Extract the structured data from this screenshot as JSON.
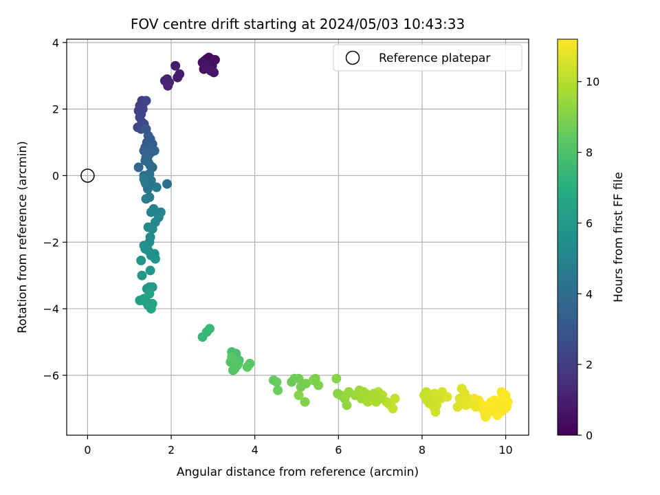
{
  "chart_data": {
    "type": "scatter",
    "title": "FOV centre drift starting at 2024/05/03 10:43:33",
    "xlabel": "Angular distance from reference (arcmin)",
    "ylabel": "Rotation from reference (arcmin)",
    "xlim": [
      -0.5,
      10.55
    ],
    "ylim": [
      -7.8,
      4.1
    ],
    "xticks": [
      0,
      2,
      4,
      6,
      8,
      10
    ],
    "yticks": [
      -6,
      -4,
      -2,
      0,
      2,
      4
    ],
    "grid": true,
    "legend": {
      "label": "Reference platepar",
      "placement": "top-right",
      "marker": "open-circle"
    },
    "reference_point": {
      "x": 0,
      "y": 0
    },
    "colorbar": {
      "label": "Hours from first FF file",
      "colormap": "viridis",
      "range": [
        0,
        11.2
      ],
      "ticks": [
        0,
        2,
        4,
        6,
        8,
        10
      ]
    },
    "series": [
      {
        "x": [
          2.8,
          2.85,
          2.9,
          2.95,
          3.0,
          2.78,
          3.05,
          2.98,
          2.88,
          2.75,
          2.82,
          2.95,
          3.02,
          1.9,
          1.95,
          1.85,
          1.92,
          2.1,
          2.2,
          2.15,
          1.3,
          1.25,
          1.35,
          1.22,
          1.28,
          1.32,
          1.4,
          1.25,
          1.3,
          1.2,
          1.35,
          1.28,
          1.4,
          1.45,
          1.5,
          1.42,
          1.38,
          1.55,
          1.48,
          1.52,
          1.45,
          1.35,
          1.4,
          1.6,
          1.45,
          1.38,
          1.5,
          1.42,
          1.55,
          1.22,
          1.35,
          1.42,
          1.48,
          1.4,
          1.45,
          1.52,
          1.38,
          1.44,
          1.65,
          1.35,
          1.48,
          1.9,
          1.4,
          1.58,
          1.75,
          1.52,
          1.62,
          1.7,
          1.45,
          1.5,
          1.55,
          1.48,
          1.42,
          1.38,
          1.6,
          1.52,
          1.35,
          1.45,
          1.62,
          1.28,
          1.5,
          1.3,
          1.48,
          1.42,
          1.55,
          1.35,
          1.25,
          1.4,
          1.52,
          1.45,
          1.38,
          1.48,
          1.55,
          1.52,
          2.75,
          2.85,
          2.92,
          3.45,
          3.55,
          3.62,
          3.5,
          3.58,
          3.42,
          3.52,
          3.48,
          3.6,
          3.45,
          3.88,
          3.82,
          4.45,
          4.52,
          4.55,
          4.88,
          4.95,
          5.05,
          5.1,
          5.22,
          5.4,
          5.45,
          5.52,
          5.2,
          5.05,
          5.95,
          5.98,
          6.05,
          6.15,
          6.2,
          6.25,
          6.18,
          6.4,
          6.5,
          6.55,
          6.6,
          6.7,
          6.65,
          6.75,
          6.85,
          6.9,
          7.0,
          6.95,
          7.05,
          7.15,
          7.2,
          7.25,
          7.35,
          7.3,
          7.0,
          6.85,
          6.7,
          6.6,
          8.1,
          8.15,
          8.2,
          8.25,
          8.3,
          8.35,
          8.4,
          8.45,
          8.18,
          8.28,
          8.38,
          8.22,
          8.05,
          8.12,
          8.6,
          8.32,
          8.48,
          8.9,
          8.95,
          9.0,
          9.05,
          9.1,
          9.15,
          9.2,
          9.25,
          9.3,
          9.35,
          9.4,
          9.45,
          9.5,
          9.55,
          9.6,
          9.65,
          9.7,
          9.75,
          9.8,
          9.85,
          9.9,
          9.95,
          10.0,
          10.05,
          9.92,
          9.98,
          10.02,
          9.88,
          9.82,
          9.92,
          8.85,
          9.02,
          9.12,
          9.28,
          9.52,
          9.62,
          9.72
        ],
        "y": [
          3.45,
          3.5,
          3.55,
          3.5,
          3.45,
          3.2,
          3.48,
          3.3,
          3.35,
          3.4,
          3.25,
          3.15,
          3.1,
          2.9,
          2.8,
          2.85,
          2.7,
          3.3,
          3.05,
          2.95,
          2.25,
          2.1,
          2.2,
          1.95,
          1.85,
          2.0,
          2.25,
          1.75,
          1.6,
          1.45,
          1.55,
          1.4,
          1.4,
          1.2,
          1.1,
          1.0,
          0.85,
          0.95,
          0.8,
          0.7,
          0.6,
          0.75,
          0.55,
          0.75,
          0.4,
          0.45,
          0.3,
          0.5,
          0.25,
          0.25,
          0.0,
          -0.1,
          0.05,
          -0.25,
          -0.3,
          -0.15,
          -0.2,
          -0.4,
          -0.35,
          -0.1,
          -0.65,
          -0.25,
          -0.7,
          -1.0,
          -1.1,
          -1.1,
          -1.4,
          -1.25,
          -1.55,
          -1.85,
          -1.6,
          -2.0,
          -2.15,
          -2.2,
          -2.35,
          -2.4,
          -2.1,
          -2.25,
          -2.5,
          -2.55,
          -2.85,
          -3.0,
          -3.35,
          -3.4,
          -3.35,
          -3.7,
          -3.75,
          -3.8,
          -3.85,
          -3.9,
          -3.7,
          -3.55,
          -3.85,
          -4.0,
          -4.85,
          -4.7,
          -4.6,
          -5.3,
          -5.35,
          -5.55,
          -5.6,
          -5.7,
          -5.6,
          -5.8,
          -5.85,
          -5.65,
          -5.45,
          -5.65,
          -5.75,
          -6.15,
          -6.2,
          -6.45,
          -6.2,
          -6.1,
          -6.1,
          -6.35,
          -6.25,
          -6.15,
          -6.1,
          -6.3,
          -6.8,
          -6.6,
          -6.1,
          -6.55,
          -6.6,
          -6.7,
          -6.9,
          -6.5,
          -6.6,
          -6.6,
          -6.45,
          -6.7,
          -6.5,
          -6.8,
          -6.55,
          -6.6,
          -6.75,
          -6.8,
          -6.6,
          -6.5,
          -6.6,
          -6.8,
          -6.85,
          -6.9,
          -6.7,
          -7.0,
          -6.7,
          -6.55,
          -6.7,
          -6.5,
          -6.5,
          -6.65,
          -6.8,
          -6.7,
          -6.55,
          -6.9,
          -6.6,
          -6.7,
          -6.85,
          -6.95,
          -6.65,
          -6.8,
          -6.6,
          -6.75,
          -6.65,
          -7.1,
          -6.5,
          -6.7,
          -6.4,
          -6.8,
          -6.9,
          -6.7,
          -6.75,
          -6.85,
          -6.7,
          -6.9,
          -6.75,
          -6.85,
          -7.0,
          -7.15,
          -7.1,
          -6.9,
          -6.8,
          -6.95,
          -7.05,
          -7.2,
          -7.0,
          -6.5,
          -6.7,
          -6.6,
          -6.8,
          -6.85,
          -7.0,
          -6.95,
          -7.1,
          -7.0,
          -6.65,
          -6.95,
          -6.55,
          -6.85,
          -6.95,
          -7.25,
          -7.1,
          -6.75
        ],
        "hours": [
          0.1,
          0.15,
          0.2,
          0.25,
          0.3,
          0.35,
          0.4,
          0.45,
          0.5,
          0.55,
          0.6,
          0.65,
          0.7,
          1.0,
          1.05,
          1.1,
          1.15,
          0.8,
          0.85,
          0.9,
          2.0,
          2.05,
          2.1,
          2.15,
          2.2,
          2.25,
          2.3,
          2.35,
          2.4,
          2.45,
          2.5,
          2.55,
          3.0,
          3.1,
          3.15,
          3.2,
          3.25,
          3.3,
          3.35,
          3.4,
          3.45,
          3.5,
          3.55,
          3.6,
          3.65,
          3.7,
          3.75,
          3.8,
          3.85,
          3.7,
          4.0,
          4.1,
          4.15,
          4.2,
          4.25,
          4.3,
          4.35,
          4.4,
          4.45,
          4.5,
          4.55,
          4.2,
          4.65,
          4.9,
          5.0,
          5.05,
          5.1,
          5.15,
          5.2,
          5.3,
          5.35,
          5.4,
          5.45,
          5.5,
          5.55,
          5.6,
          5.65,
          5.7,
          5.75,
          5.8,
          5.85,
          5.9,
          6.0,
          6.05,
          6.1,
          6.15,
          6.2,
          6.25,
          6.3,
          6.35,
          6.4,
          6.45,
          6.5,
          6.55,
          7.4,
          7.45,
          7.5,
          7.8,
          7.85,
          7.9,
          7.95,
          8.0,
          8.05,
          8.1,
          8.15,
          8.2,
          8.25,
          8.3,
          8.35,
          8.5,
          8.55,
          8.6,
          8.65,
          8.7,
          8.75,
          8.8,
          8.85,
          8.9,
          8.95,
          9.0,
          9.05,
          9.1,
          9.1,
          9.15,
          9.2,
          9.25,
          9.3,
          9.35,
          9.4,
          9.45,
          9.5,
          9.55,
          9.6,
          9.65,
          9.7,
          9.75,
          9.8,
          9.85,
          9.9,
          9.9,
          9.95,
          10.0,
          10.05,
          10.1,
          10.15,
          10.2,
          9.8,
          9.75,
          9.7,
          9.65,
          10.2,
          10.25,
          10.3,
          10.35,
          10.4,
          10.45,
          10.5,
          10.55,
          10.3,
          10.4,
          10.45,
          10.35,
          10.25,
          10.28,
          10.6,
          10.42,
          10.5,
          10.6,
          10.65,
          10.7,
          10.75,
          10.8,
          10.85,
          10.9,
          10.95,
          11.0,
          11.05,
          11.1,
          11.1,
          11.15,
          11.15,
          11.15,
          11.2,
          11.2,
          11.2,
          11.2,
          11.2,
          11.15,
          11.2,
          11.2,
          11.2,
          11.1,
          11.2,
          11.2,
          11.15,
          11.1,
          11.18,
          10.65,
          10.72,
          10.8,
          10.9,
          11.05,
          11.12,
          11.15
        ]
      }
    ]
  }
}
